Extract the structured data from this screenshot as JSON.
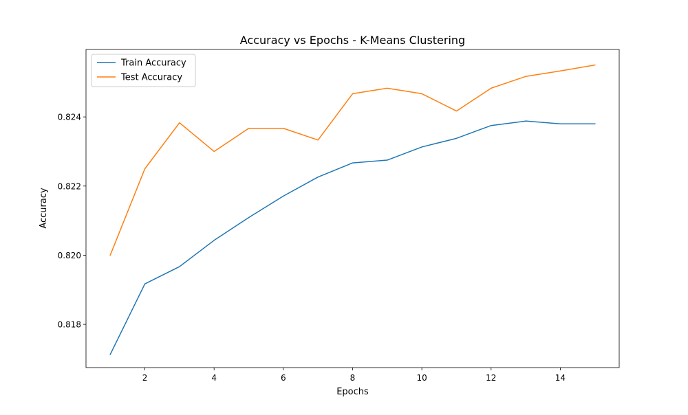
{
  "chart_data": {
    "type": "line",
    "title": "Accuracy vs Epochs - K-Means Clustering",
    "xlabel": "Epochs",
    "ylabel": "Accuracy",
    "x": [
      1,
      2,
      3,
      4,
      5,
      6,
      7,
      8,
      9,
      10,
      11,
      12,
      13,
      14,
      15
    ],
    "xlim": [
      0.3,
      15.7
    ],
    "ylim": [
      0.81675,
      0.82595
    ],
    "xticks": [
      2,
      4,
      6,
      8,
      10,
      12,
      14
    ],
    "xtick_labels": [
      "2",
      "4",
      "6",
      "8",
      "10",
      "12",
      "14"
    ],
    "yticks": [
      0.818,
      0.82,
      0.822,
      0.824
    ],
    "ytick_labels": [
      "0.818",
      "0.820",
      "0.822",
      "0.824"
    ],
    "grid": false,
    "legend_position": "top-left",
    "series": [
      {
        "name": "Train Accuracy",
        "color": "#1f77b4",
        "values": [
          0.81713,
          0.81917,
          0.81967,
          0.82043,
          0.82109,
          0.82171,
          0.82226,
          0.82267,
          0.82275,
          0.82313,
          0.82338,
          0.82375,
          0.82388,
          0.8238,
          0.8238
        ]
      },
      {
        "name": "Test Accuracy",
        "color": "#ff7f0e",
        "values": [
          0.82,
          0.8225,
          0.82383,
          0.823,
          0.82367,
          0.82367,
          0.82333,
          0.82467,
          0.82483,
          0.82467,
          0.82417,
          0.82483,
          0.82517,
          0.82533,
          0.8255
        ]
      }
    ]
  }
}
